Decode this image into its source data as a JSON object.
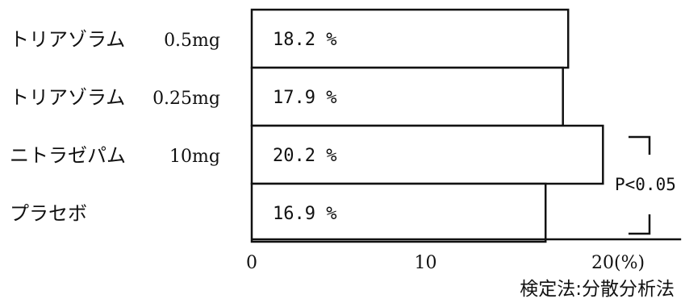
{
  "chart_data": {
    "type": "bar",
    "orientation": "horizontal",
    "categories": [
      "トリアゾラム",
      "トリアゾラム",
      "ニトラゼパム",
      "プラセボ"
    ],
    "doses": [
      "0.5mg",
      "0.25mg",
      "10mg",
      ""
    ],
    "values": [
      18.2,
      17.9,
      20.2,
      16.9
    ],
    "value_labels": [
      "18.2 %",
      "17.9 %",
      "20.2 %",
      "16.9 %"
    ],
    "xlim": [
      0,
      24
    ],
    "ticks": [
      {
        "value": 0,
        "label": "0"
      },
      {
        "value": 10,
        "label": "10"
      },
      {
        "value": 20,
        "label": "20(%)"
      }
    ],
    "grid": false,
    "significance": {
      "label": "P<0.05",
      "from_index": 2,
      "to_index": 3
    },
    "footnote": "検定法:分散分析法"
  },
  "colors": {
    "bar_fill": "#ffffff",
    "stroke": "#111111",
    "background": "#ffffff"
  }
}
